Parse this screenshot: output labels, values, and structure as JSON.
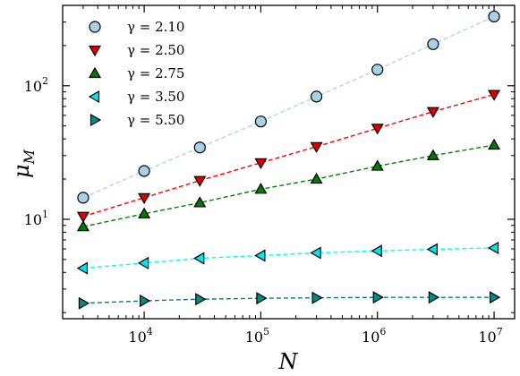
{
  "chart_data": {
    "type": "line",
    "xscale": "log",
    "yscale": "log",
    "xlim": [
      2000,
      15000000
    ],
    "ylim": [
      1.8,
      400
    ],
    "xlabel": "N",
    "ylabel": "μ_M",
    "grid": false,
    "legend_position": "top-left",
    "x_ticks": [
      {
        "value": 10000,
        "base": "10",
        "exp": "4"
      },
      {
        "value": 100000,
        "base": "10",
        "exp": "5"
      },
      {
        "value": 1000000,
        "base": "10",
        "exp": "6"
      },
      {
        "value": 10000000,
        "base": "10",
        "exp": "7"
      }
    ],
    "y_ticks": [
      {
        "value": 10,
        "base": "10",
        "exp": "1"
      },
      {
        "value": 100,
        "base": "10",
        "exp": "2"
      }
    ],
    "x": [
      3000,
      10000,
      30000,
      100000,
      300000,
      1000000,
      3000000,
      10000000
    ],
    "series": [
      {
        "name": "γ = 2.10",
        "marker": "circle",
        "fill": "#a8d0e6",
        "line": "#add8e6",
        "values": [
          14.5,
          23,
          34.5,
          54,
          83,
          132,
          205,
          330
        ]
      },
      {
        "name": "γ = 2.50",
        "marker": "triangle-down",
        "fill": "#dd0000",
        "line": "#ff0000",
        "values": [
          10.5,
          14.5,
          19.5,
          26.5,
          35,
          48,
          64,
          86
        ]
      },
      {
        "name": "γ = 2.75",
        "marker": "triangle-up",
        "fill": "#007a00",
        "line": "#008000",
        "values": [
          8.8,
          11,
          13.3,
          16.8,
          20,
          25,
          30,
          36
        ]
      },
      {
        "name": "γ = 3.50",
        "marker": "triangle-left",
        "fill": "#00e5ee",
        "line": "#00ffff",
        "values": [
          4.3,
          4.7,
          5.1,
          5.35,
          5.6,
          5.8,
          5.95,
          6.1
        ]
      },
      {
        "name": "γ = 5.50",
        "marker": "triangle-right",
        "fill": "#008b8b",
        "line": "#008080",
        "values": [
          2.35,
          2.45,
          2.52,
          2.56,
          2.58,
          2.6,
          2.6,
          2.6
        ]
      }
    ]
  }
}
